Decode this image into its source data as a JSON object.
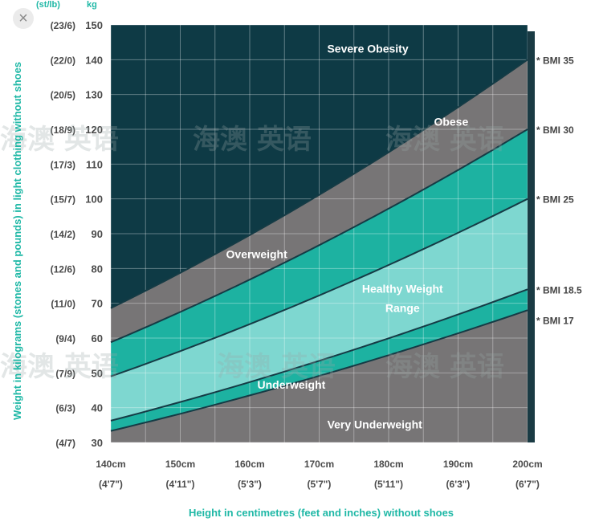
{
  "close_icon": "×",
  "colors": {
    "severe": "#0e3a45",
    "obese": "#777576",
    "overweight": "#1db2a1",
    "healthy": "#7ed7d0",
    "underweight": "#1db2a1",
    "very_under": "#777576",
    "grid": "#ffffff",
    "title": "#1fb8a6"
  },
  "watermark": "海澳 英语",
  "chart_data": {
    "type": "area",
    "x_axis": {
      "label": "Height in centimetres (feet and inches) without shoes",
      "range": [
        140,
        200
      ],
      "ticks": [
        140,
        150,
        160,
        170,
        180,
        190,
        200
      ],
      "tick_labels": [
        "140cm",
        "150cm",
        "160cm",
        "170cm",
        "180cm",
        "190cm",
        "200cm"
      ],
      "tick_sublabels": [
        "(4'7\")",
        "(4'11\")",
        "(5'3\")",
        "(5'7\")",
        "(5'11\")",
        "(6'3\")",
        "(6'7\")"
      ]
    },
    "y_axis": {
      "label": "Weight in kilograms (stones and pounds) in light clothing without shoes",
      "range": [
        30,
        150
      ],
      "ticks": [
        30,
        40,
        50,
        60,
        70,
        80,
        90,
        100,
        110,
        120,
        130,
        140,
        150
      ],
      "sublabels": [
        "(4/7)",
        "(6/3)",
        "(7/9)",
        "(9/4)",
        "(11/0)",
        "(12/6)",
        "(14/2)",
        "(15/7)",
        "(17/3)",
        "(18/9)",
        "(20/5)",
        "(22/0)",
        "(23/6)"
      ],
      "unit_main": "kg",
      "unit_alt": "(st/lb)"
    },
    "grid": true,
    "series": [
      {
        "name": "BMI 35",
        "bmi": 35,
        "x": [
          140,
          200
        ],
        "y": [
          68.6,
          140
        ]
      },
      {
        "name": "BMI 30",
        "bmi": 30,
        "x": [
          140,
          200
        ],
        "y": [
          58.8,
          120
        ]
      },
      {
        "name": "BMI 25",
        "bmi": 25,
        "x": [
          140,
          200
        ],
        "y": [
          49,
          100
        ]
      },
      {
        "name": "BMI 18.5",
        "bmi": 18.5,
        "x": [
          140,
          200
        ],
        "y": [
          36.3,
          74
        ]
      },
      {
        "name": "BMI 17",
        "bmi": 17,
        "x": [
          140,
          200
        ],
        "y": [
          33.3,
          68
        ]
      }
    ],
    "bmi_labels": [
      "* BMI 35",
      "* BMI 30",
      "* BMI 25",
      "* BMI 18.5",
      "* BMI 17"
    ],
    "regions": [
      {
        "label": "Severe Obesity",
        "at": [
          177,
          142
        ]
      },
      {
        "label": "Obese",
        "at": [
          189,
          121
        ]
      },
      {
        "label": "Overweight",
        "at": [
          161,
          83
        ]
      },
      {
        "label": "Healthy Weight",
        "at": [
          182,
          73
        ]
      },
      {
        "label": "Range",
        "at": [
          182,
          67.5
        ]
      },
      {
        "label": "Underweight",
        "at": [
          166,
          45.5
        ]
      },
      {
        "label": "Very Underweight",
        "at": [
          178,
          34
        ]
      }
    ]
  }
}
